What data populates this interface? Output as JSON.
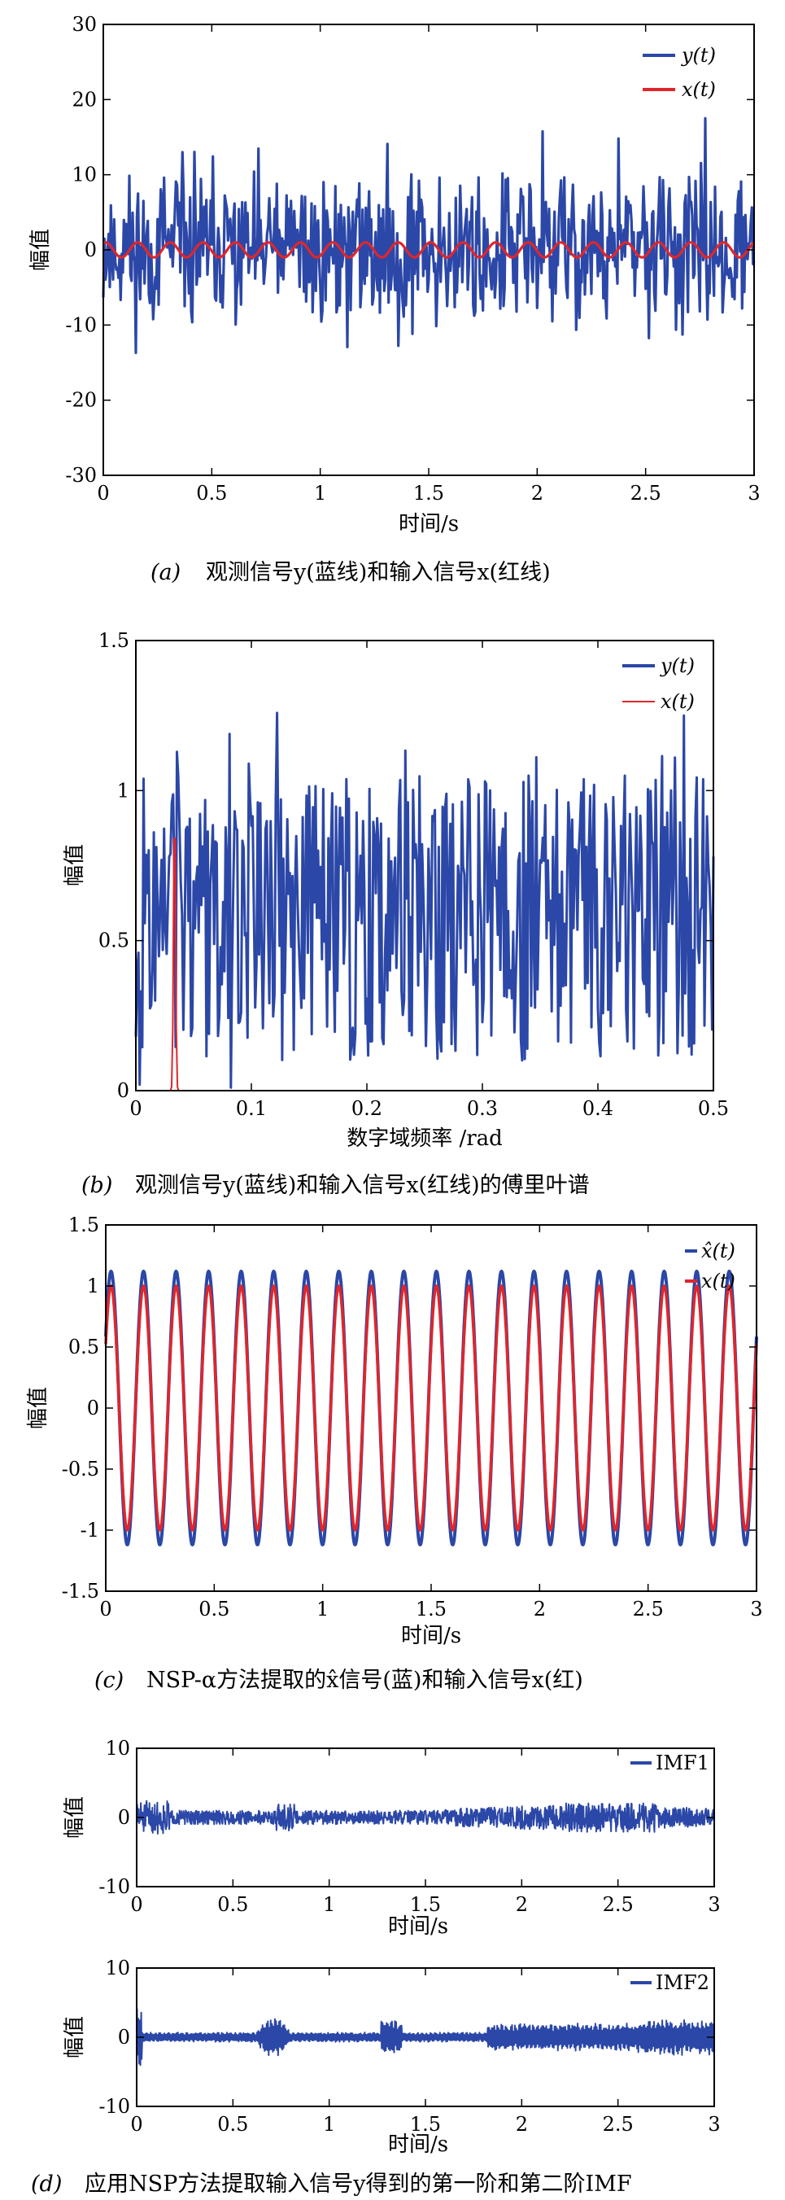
{
  "chart_data": [
    {
      "type": "line",
      "panel": "a",
      "xlabel": "时间/s",
      "ylabel": "幅值",
      "xlim": [
        0,
        3
      ],
      "ylim": [
        -30,
        30
      ],
      "xticks": [
        "0",
        "0.5",
        "1",
        "1.5",
        "2",
        "2.5",
        "3"
      ],
      "yticks": [
        "-30",
        "-20",
        "-10",
        "0",
        "10",
        "20",
        "30"
      ],
      "series": [
        {
          "name": "y(t)",
          "color": "#2b47a7",
          "description": "noisy observed signal, amplitude roughly between -17 and 17"
        },
        {
          "name": "x(t)",
          "color": "#e0262b",
          "description": "sinusoid amplitude 1, about 20 cycles over 3 s"
        }
      ],
      "legend": "top-right",
      "caption_label": "(a)",
      "caption": "观测信号y(蓝线)和输入信号x(红线)"
    },
    {
      "type": "line",
      "panel": "b",
      "xlabel": "数字域频率 /rad",
      "ylabel": "幅值",
      "xlim": [
        0,
        0.5
      ],
      "ylim": [
        0,
        1.5
      ],
      "xticks": [
        "0",
        "0.1",
        "0.2",
        "0.3",
        "0.4",
        "0.5"
      ],
      "yticks": [
        "0",
        "0.5",
        "1",
        "1.5"
      ],
      "series": [
        {
          "name": "y(t)",
          "color": "#2b47a7",
          "description": "noisy spectrum, values mostly between 0.1 and 1.43"
        },
        {
          "name": "x(t)",
          "color": "#e0262b",
          "description": "single narrow peak of height 1 at about 0.033 rad, zero elsewhere"
        }
      ],
      "legend": "top-right",
      "caption_label": "(b)",
      "caption": "观测信号y(蓝线)和输入信号x(红线)的傅里叶谱"
    },
    {
      "type": "line",
      "panel": "c",
      "xlabel": "时间/s",
      "ylabel": "幅值",
      "xlim": [
        0,
        3
      ],
      "ylim": [
        -1.5,
        1.5
      ],
      "xticks": [
        "0",
        "0.5",
        "1",
        "1.5",
        "2",
        "2.5",
        "3"
      ],
      "yticks": [
        "-1.5",
        "-1",
        "-0.5",
        "0",
        "0.5",
        "1",
        "1.5"
      ],
      "series": [
        {
          "name": "x̂(t)",
          "color": "#2b47a7",
          "amplitude": 1.12,
          "cycles": 20
        },
        {
          "name": "x(t)",
          "color": "#e0262b",
          "amplitude": 1.0,
          "cycles": 20
        }
      ],
      "legend": "top-right",
      "caption_label": "(c)",
      "caption": "NSP-α方法提取的x̂信号(蓝)和输入信号x(红)"
    },
    {
      "type": "line",
      "panel": "d1",
      "xlabel": "时间/s",
      "ylabel": "幅值",
      "xlim": [
        0,
        3
      ],
      "ylim": [
        -10,
        10
      ],
      "xticks": [
        "0",
        "0.5",
        "1",
        "1.5",
        "2",
        "2.5",
        "3"
      ],
      "yticks": [
        "-10",
        "0",
        "10"
      ],
      "series": [
        {
          "name": "IMF1",
          "color": "#2b47a7",
          "description": "high-frequency oscillation, amplitude about 1-3"
        }
      ],
      "legend": "top-right"
    },
    {
      "type": "line",
      "panel": "d2",
      "xlabel": "时间/s",
      "ylabel": "幅值",
      "xlim": [
        0,
        3
      ],
      "ylim": [
        -10,
        10
      ],
      "xticks": [
        "0",
        "0.5",
        "1",
        "1.5",
        "2",
        "2.5",
        "3"
      ],
      "yticks": [
        "-10",
        "0",
        "10"
      ],
      "series": [
        {
          "name": "IMF2",
          "color": "#2b47a7",
          "description": "oscillation with bursts, amplitude about 1-5"
        }
      ],
      "legend": "top-right",
      "caption_label": "(d)",
      "caption": "应用NSP方法提取输入信号y得到的第一阶和第二阶IMF"
    }
  ]
}
